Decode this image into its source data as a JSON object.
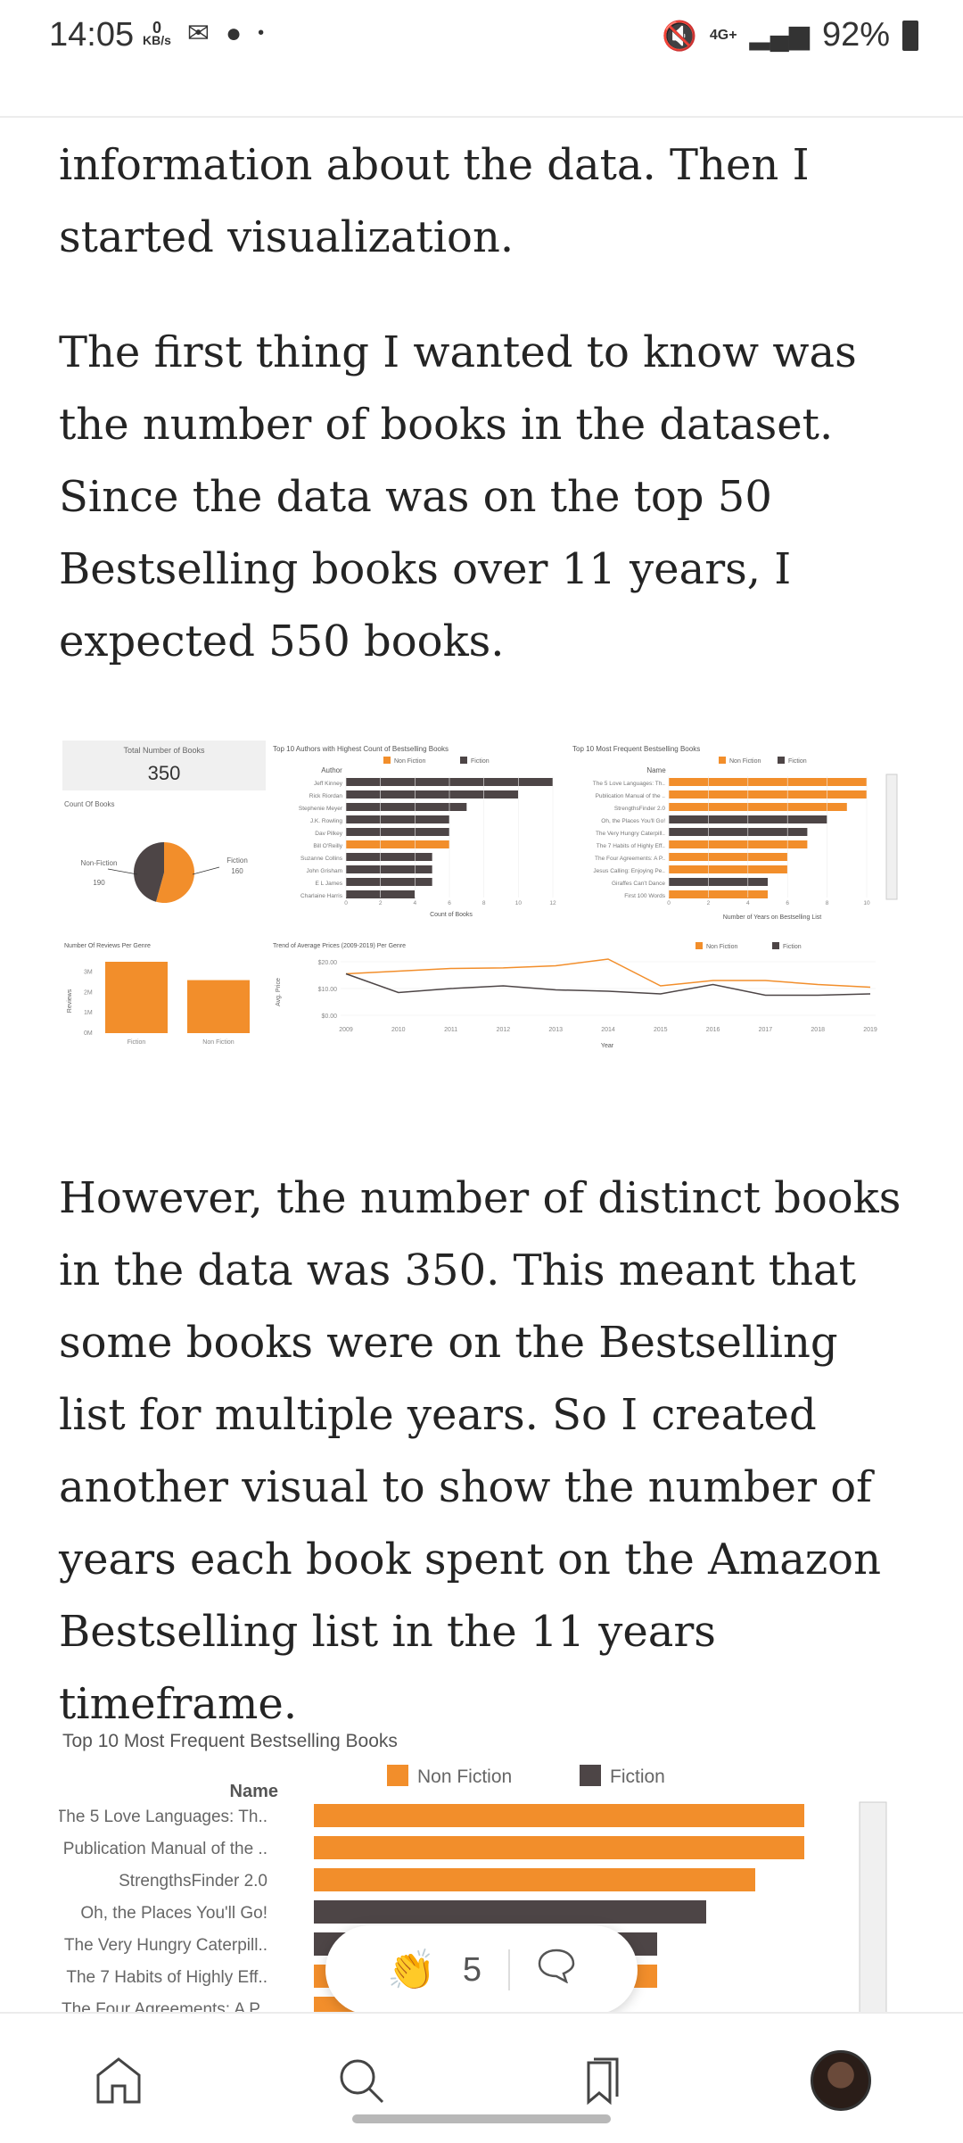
{
  "status_bar": {
    "time": "14:05",
    "data_speed_value": "0",
    "data_speed_unit": "KB/s",
    "network": "4G+",
    "battery": "92%"
  },
  "article": {
    "paragraph1": "information about the data. Then I started visualization.",
    "paragraph2": "The first thing I wanted to know was the number of books in the dataset. Since the data was on the top 50 Bestselling books over 11 years, I expected 550 books.",
    "paragraph3": "However, the number of distinct books in the data was 350. This meant that some books were on the Bestselling list for multiple years. So I created another visual to show the number of years each book spent on the Amazon Bestselling list in the 11 years timeframe."
  },
  "dashboard": {
    "total_label": "Total Number of Books",
    "total_value": "350",
    "count_of_books": "Count Of Books",
    "pie_labels": {
      "nonfiction": "Non-Fiction",
      "nonfiction_value": "190",
      "fiction": "Fiction",
      "fiction_value": "160"
    },
    "authors_title": "Top 10 Authors with Highest Count of Bestselling Books",
    "authors_col": "Author",
    "authors_axis": "Count of Books",
    "freq_title": "Top 10 Most Frequent Bestselling Books",
    "freq_col": "Name",
    "freq_axis": "Number of Years on Bestselling List",
    "reviews_title": "Number Of Reviews Per Genre",
    "reviews_ylabel": "Reviews",
    "reviews_cats": [
      "Fiction",
      "Non Fiction"
    ],
    "trend_title": "Trend of Average Prices (2009-2019) Per Genre",
    "trend_ylabel": "Avg. Price",
    "trend_xlabel": "Year",
    "legend_nonfiction": "Non Fiction",
    "legend_fiction": "Fiction"
  },
  "chart_data": [
    {
      "type": "pie",
      "title": "Count Of Books",
      "categories": [
        "Non-Fiction",
        "Fiction"
      ],
      "values": [
        190,
        160
      ]
    },
    {
      "type": "bar",
      "title": "Top 10 Authors with Highest Count of Bestselling Books",
      "xlabel": "Count of Books",
      "ylabel": "Author",
      "categories": [
        "Jeff Kinney",
        "Rick Riordan",
        "Stephenie Meyer",
        "J.K. Rowling",
        "Dav Pilkey",
        "Bill O'Reilly",
        "Suzanne Collins",
        "John Grisham",
        "E L James",
        "Charlaine Harris"
      ],
      "values": [
        12,
        10,
        7,
        6,
        6,
        6,
        5,
        5,
        5,
        4
      ],
      "genres": [
        "Fiction",
        "Fiction",
        "Fiction",
        "Fiction",
        "Fiction",
        "Non Fiction",
        "Fiction",
        "Fiction",
        "Fiction",
        "Fiction"
      ],
      "xlim": [
        0,
        12
      ]
    },
    {
      "type": "bar",
      "title": "Top 10 Most Frequent Bestselling Books",
      "xlabel": "Number of Years on Bestselling List",
      "ylabel": "Name",
      "categories": [
        "The 5 Love Languages: Th..",
        "Publication Manual of the ..",
        "StrengthsFinder 2.0",
        "Oh, the Places You'll Go!",
        "The Very Hungry Caterpill..",
        "The 7 Habits of Highly Eff..",
        "The Four Agreements: A P..",
        "Jesus Calling: Enjoying Pe..",
        "Giraffes Can't Dance",
        "First 100 Words"
      ],
      "values": [
        10,
        10,
        9,
        8,
        7,
        7,
        6,
        6,
        5,
        5
      ],
      "genres": [
        "Non Fiction",
        "Non Fiction",
        "Non Fiction",
        "Fiction",
        "Fiction",
        "Non Fiction",
        "Non Fiction",
        "Non Fiction",
        "Fiction",
        "Non Fiction"
      ],
      "xlim": [
        0,
        10
      ]
    },
    {
      "type": "bar",
      "title": "Number Of Reviews Per Genre",
      "ylabel": "Reviews",
      "categories": [
        "Fiction",
        "Non Fiction"
      ],
      "values": [
        3500000,
        2600000
      ],
      "ylim": [
        0,
        3500000
      ]
    },
    {
      "type": "line",
      "title": "Trend of Average Prices (2009-2019) Per Genre",
      "xlabel": "Year",
      "ylabel": "Avg. Price",
      "x": [
        2009,
        2010,
        2011,
        2012,
        2013,
        2014,
        2015,
        2016,
        2017,
        2018,
        2019
      ],
      "series": [
        {
          "name": "Non Fiction",
          "values": [
            15.5,
            16.5,
            17.5,
            17.7,
            18.5,
            21.0,
            11.0,
            13.0,
            13.0,
            11.5,
            10.5
          ]
        },
        {
          "name": "Fiction",
          "values": [
            15.5,
            8.5,
            10.0,
            11.0,
            9.5,
            9.0,
            8.0,
            11.5,
            7.5,
            7.5,
            8.0
          ]
        }
      ],
      "ylim": [
        0,
        20
      ],
      "yticks": [
        "$0.00",
        "$10.00",
        "$20.00"
      ]
    }
  ],
  "chart2": {
    "title": "Top 10 Most Frequent Bestselling Books",
    "col": "Name",
    "legend_nonfiction": "Non Fiction",
    "legend_fiction": "Fiction"
  },
  "clap": {
    "count": "5"
  },
  "colors": {
    "nonfiction": "#f28e2b",
    "fiction": "#4d4546"
  }
}
